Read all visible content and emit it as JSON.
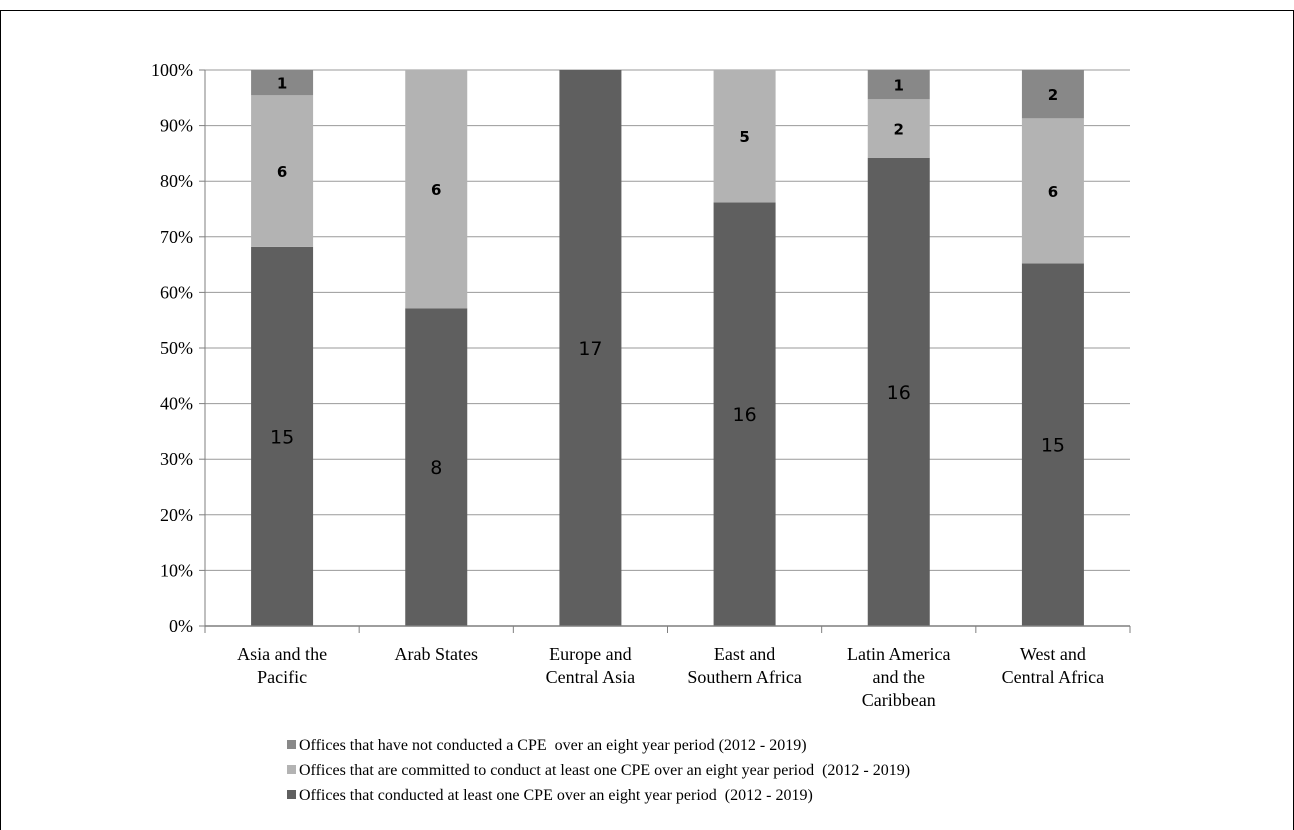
{
  "chart_data": {
    "type": "bar",
    "stacked": true,
    "normalized": true,
    "title": "",
    "xlabel": "",
    "ylabel": "",
    "ylim": [
      0,
      100
    ],
    "y_ticks": [
      "0%",
      "10%",
      "20%",
      "30%",
      "40%",
      "50%",
      "60%",
      "70%",
      "80%",
      "90%",
      "100%"
    ],
    "grid": true,
    "legend_position": "bottom",
    "categories": [
      [
        "Asia and the",
        "Pacific"
      ],
      [
        "Arab States"
      ],
      [
        "Europe and",
        "Central Asia"
      ],
      [
        "East and",
        "Southern Africa"
      ],
      [
        "Latin America",
        "and the",
        "Caribbean"
      ],
      [
        "West and",
        "Central Africa"
      ]
    ],
    "series": [
      {
        "name": "Offices that conducted at least one CPE over an eight year period  (2012 - 2019)",
        "color": "#5f5f5f",
        "values": [
          15,
          8,
          17,
          16,
          16,
          15
        ]
      },
      {
        "name": "Offices that are committed to conduct at least one CPE over an eight year period  (2012 - 2019)",
        "color": "#b3b3b3",
        "values": [
          6,
          6,
          0,
          5,
          2,
          6
        ]
      },
      {
        "name": "Offices that have not conducted a CPE  over an eight year period (2012 - 2019)",
        "color": "#888888",
        "values": [
          1,
          0,
          0,
          0,
          1,
          2
        ]
      }
    ],
    "legend_order": [
      2,
      1,
      0
    ]
  }
}
